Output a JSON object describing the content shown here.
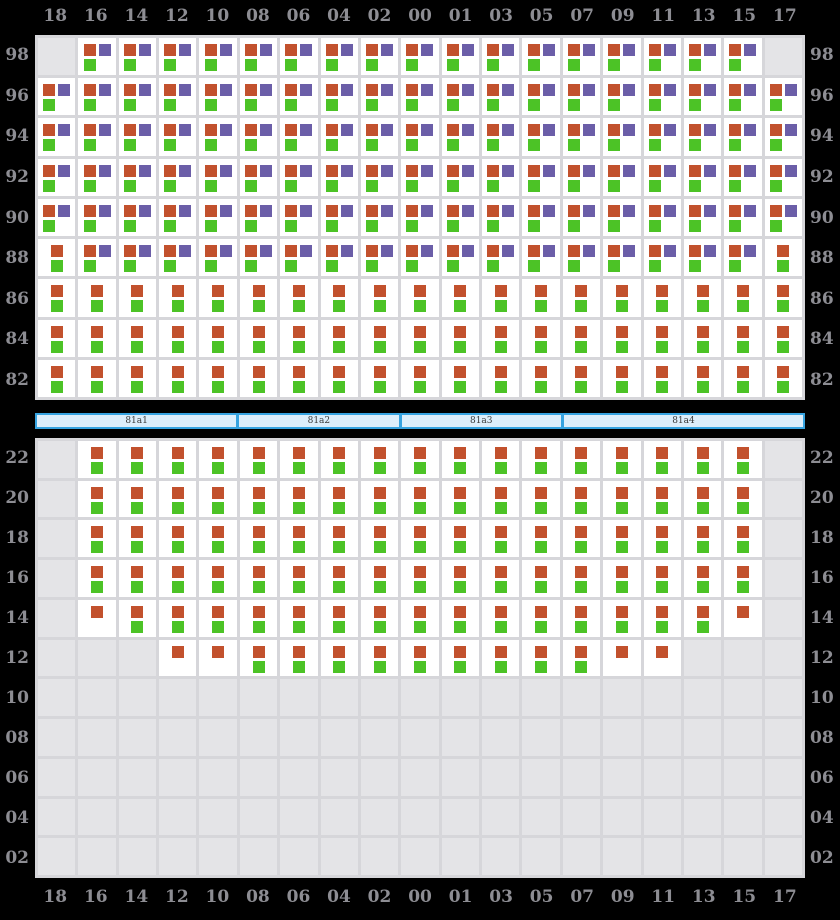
{
  "colors": {
    "background": "#000000",
    "orange": "#c2512d",
    "green": "#4cc326",
    "purple": "#6b5ea8",
    "grid_line": "#d6d6da",
    "cell_filled": "#ffffff",
    "cell_empty": "#e4e4e7",
    "label_text": "#8d8d93",
    "bar_fill": "#dceefb",
    "bar_border": "#36a3e0",
    "bar_text": "#3a3a3a"
  },
  "cell_code_legend": {
    "P": "orange+purple+green markers",
    "G": "orange+green markers",
    "O": "orange marker only",
    ".": "empty gray cell"
  },
  "column_labels": [
    "18",
    "16",
    "14",
    "12",
    "10",
    "08",
    "06",
    "04",
    "02",
    "00",
    "01",
    "03",
    "05",
    "07",
    "09",
    "11",
    "13",
    "15",
    "17"
  ],
  "top_section": {
    "row_labels": [
      "98",
      "96",
      "94",
      "92",
      "90",
      "88",
      "86",
      "84",
      "82"
    ],
    "rows": [
      ".PPPPPPPPPPPPPPPPP.",
      "PPPPPPPPPPPPPPPPPPP",
      "PPPPPPPPPPPPPPPPPPP",
      "PPPPPPPPPPPPPPPPPPP",
      "PPPPPPPPPPPPPPPPPPP",
      "GPPPPPPPPPPPPPPPPPG",
      "GGGGGGGGGGGGGGGGGGG",
      "GGGGGGGGGGGGGGGGGGG",
      "GGGGGGGGGGGGGGGGGGG"
    ]
  },
  "divider_bar": {
    "segments": [
      {
        "label": "81a1",
        "span": 5
      },
      {
        "label": "81a2",
        "span": 4
      },
      {
        "label": "81a3",
        "span": 4
      },
      {
        "label": "81a4",
        "span": 6
      }
    ]
  },
  "bottom_section": {
    "row_labels": [
      "22",
      "20",
      "18",
      "16",
      "14",
      "12",
      "10",
      "08",
      "06",
      "04",
      "02"
    ],
    "rows": [
      ".GGGGGGGGGGGGGGGGG.",
      ".GGGGGGGGGGGGGGGGG.",
      ".GGGGGGGGGGGGGGGGG.",
      ".GGGGGGGGGGGGGGGGG.",
      ".OGGGGGGGGGGGGGGGO.",
      "...OOGGGGGGGGGOO...",
      "...................",
      "...................",
      "...................",
      "...................",
      "..................."
    ]
  }
}
